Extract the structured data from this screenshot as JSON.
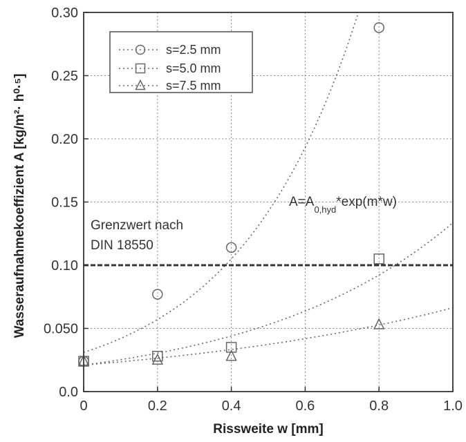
{
  "chart_data": {
    "type": "scatter",
    "xlabel": "Rissweite w [mm]",
    "ylabel": "Wasseraufnahmekoeffizient A [kg/m²· h⁰·⁵]",
    "xlim": [
      0,
      1.0
    ],
    "ylim": [
      0,
      0.3
    ],
    "grid": true,
    "legend_position": "top-left",
    "x_ticks": [
      "0",
      "0.2",
      "0.4",
      "0.6",
      "0.8",
      "1.0"
    ],
    "y_ticks": [
      "0.0",
      "0.050",
      "0.10",
      "0.15",
      "0.20",
      "0.25",
      "0.30"
    ],
    "series": [
      {
        "name": "s=2.5 mm",
        "marker": "circle",
        "x": [
          0,
          0.2,
          0.4,
          0.8
        ],
        "y": [
          0.024,
          0.077,
          0.114,
          0.288
        ],
        "fit": {
          "A0": 0.031,
          "m": 3.05
        }
      },
      {
        "name": "s=5.0 mm",
        "marker": "square",
        "x": [
          0,
          0.2,
          0.4,
          0.8
        ],
        "y": [
          0.024,
          0.028,
          0.035,
          0.105
        ],
        "fit": {
          "A0": 0.021,
          "m": 1.85
        }
      },
      {
        "name": "s=7.5 mm",
        "marker": "triangle",
        "x": [
          0,
          0.2,
          0.4,
          0.8
        ],
        "y": [
          0.024,
          0.025,
          0.028,
          0.053
        ],
        "fit": {
          "A0": 0.021,
          "m": 1.15
        }
      }
    ],
    "reference_line": {
      "y": 0.1,
      "label_line1": "Grenzwert nach",
      "label_line2": "DIN 18550"
    },
    "formula": {
      "main": "A=A",
      "sub": "0,hyd",
      "tail": "*exp(m*w)"
    },
    "colors": {
      "axis": "#333333",
      "grid": "#888888",
      "data": "#666666",
      "reference": "#333333"
    }
  }
}
